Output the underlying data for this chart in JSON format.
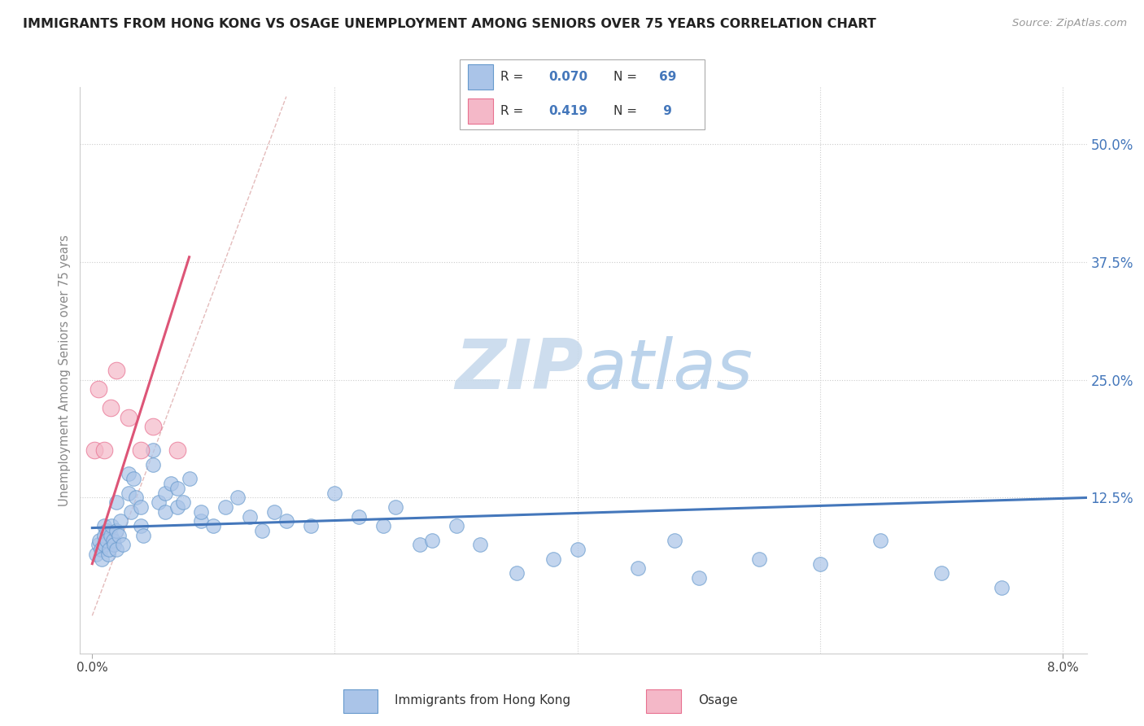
{
  "title": "IMMIGRANTS FROM HONG KONG VS OSAGE UNEMPLOYMENT AMONG SENIORS OVER 75 YEARS CORRELATION CHART",
  "source": "Source: ZipAtlas.com",
  "ylabel": "Unemployment Among Seniors over 75 years",
  "legend_labels": [
    "Immigrants from Hong Kong",
    "Osage"
  ],
  "ytick_labels": [
    "12.5%",
    "25.0%",
    "37.5%",
    "50.0%"
  ],
  "ytick_values": [
    0.125,
    0.25,
    0.375,
    0.5
  ],
  "xlim": [
    -0.001,
    0.082
  ],
  "ylim": [
    -0.04,
    0.56
  ],
  "background_color": "#ffffff",
  "grid_color": "#cccccc",
  "blue_color": "#aac4e8",
  "pink_color": "#f4b8c8",
  "blue_edge_color": "#6699cc",
  "pink_edge_color": "#e87090",
  "blue_line_color": "#4477bb",
  "pink_line_color": "#dd5577",
  "diag_line_color": "#ddaaaa",
  "watermark_zip_color": "#c8d8e8",
  "watermark_atlas_color": "#c8d8e8",
  "blue_scatter_x": [
    0.0003,
    0.0005,
    0.0006,
    0.0007,
    0.0008,
    0.001,
    0.001,
    0.001,
    0.0012,
    0.0012,
    0.0013,
    0.0014,
    0.0015,
    0.0016,
    0.0017,
    0.0018,
    0.002,
    0.002,
    0.002,
    0.0022,
    0.0023,
    0.0025,
    0.003,
    0.003,
    0.0032,
    0.0034,
    0.0036,
    0.004,
    0.004,
    0.0042,
    0.005,
    0.005,
    0.0055,
    0.006,
    0.006,
    0.0065,
    0.007,
    0.007,
    0.0075,
    0.008,
    0.009,
    0.009,
    0.01,
    0.011,
    0.012,
    0.013,
    0.014,
    0.015,
    0.016,
    0.018,
    0.02,
    0.022,
    0.024,
    0.025,
    0.027,
    0.028,
    0.03,
    0.032,
    0.035,
    0.038,
    0.04,
    0.045,
    0.048,
    0.05,
    0.055,
    0.06,
    0.065,
    0.07,
    0.075
  ],
  "blue_scatter_y": [
    0.065,
    0.075,
    0.08,
    0.07,
    0.06,
    0.095,
    0.085,
    0.075,
    0.09,
    0.08,
    0.065,
    0.07,
    0.085,
    0.095,
    0.08,
    0.075,
    0.12,
    0.09,
    0.07,
    0.085,
    0.1,
    0.075,
    0.15,
    0.13,
    0.11,
    0.145,
    0.125,
    0.115,
    0.095,
    0.085,
    0.16,
    0.175,
    0.12,
    0.13,
    0.11,
    0.14,
    0.135,
    0.115,
    0.12,
    0.145,
    0.1,
    0.11,
    0.095,
    0.115,
    0.125,
    0.105,
    0.09,
    0.11,
    0.1,
    0.095,
    0.13,
    0.105,
    0.095,
    0.115,
    0.075,
    0.08,
    0.095,
    0.075,
    0.045,
    0.06,
    0.07,
    0.05,
    0.08,
    0.04,
    0.06,
    0.055,
    0.08,
    0.045,
    0.03
  ],
  "pink_scatter_x": [
    0.0002,
    0.0005,
    0.001,
    0.0015,
    0.002,
    0.003,
    0.004,
    0.005,
    0.007
  ],
  "pink_scatter_y": [
    0.175,
    0.24,
    0.175,
    0.22,
    0.26,
    0.21,
    0.175,
    0.2,
    0.175
  ],
  "blue_trend_x": [
    0.0,
    0.082
  ],
  "blue_trend_y": [
    0.093,
    0.125
  ],
  "pink_trend_x": [
    0.0,
    0.008
  ],
  "pink_trend_y": [
    0.055,
    0.38
  ],
  "diag_line_x": [
    0.0,
    0.016
  ],
  "diag_line_y": [
    0.0,
    0.55
  ]
}
